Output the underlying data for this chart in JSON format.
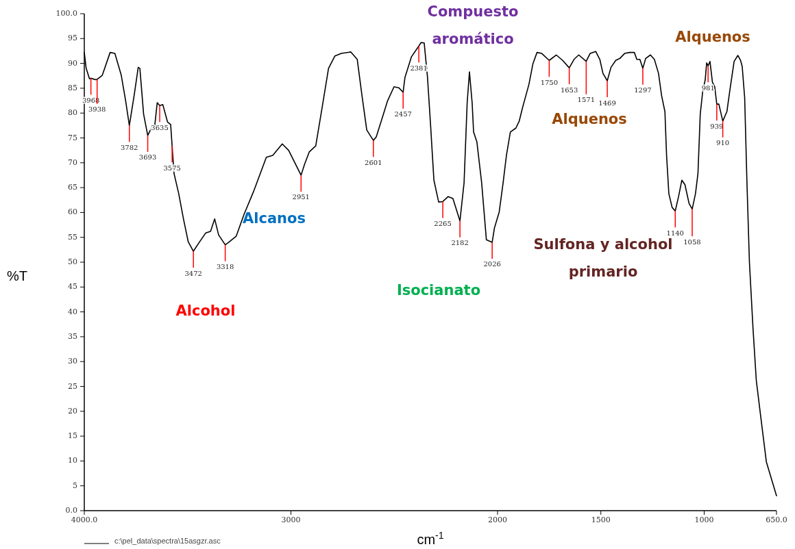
{
  "chart_data": {
    "type": "line",
    "xlabel": "cm$^{-1}$",
    "ylabel": "%T",
    "xlim": [
      4000,
      650
    ],
    "xticks": [
      {
        "value": 4000,
        "label": "4000.0"
      },
      3000,
      2000,
      1500,
      1000,
      {
        "value": 650,
        "label": "650.0"
      }
    ],
    "ylim": [
      0,
      100
    ],
    "yticks": [
      {
        "value": 0,
        "label": "0.0"
      },
      5,
      10,
      15,
      20,
      25,
      30,
      35,
      40,
      45,
      50,
      55,
      60,
      65,
      70,
      75,
      80,
      85,
      90,
      95,
      {
        "value": 100,
        "label": "100.0"
      }
    ],
    "grid": false,
    "legend": "bottom left",
    "marker": "none",
    "line_style": "solid",
    "x": [
      4000,
      3991,
      3975,
      3968,
      3944,
      3938,
      3913,
      3875,
      3852,
      3821,
      3800,
      3782,
      3759,
      3739,
      3731,
      3713,
      3693,
      3675,
      3659,
      3647,
      3635,
      3620,
      3597,
      3582,
      3575,
      3566,
      3543,
      3520,
      3497,
      3472,
      3450,
      3412,
      3389,
      3369,
      3350,
      3318,
      3304,
      3265,
      3227,
      3181,
      3119,
      3088,
      3042,
      3011,
      2951,
      2934,
      2911,
      2880,
      2849,
      2818,
      2787,
      2756,
      2710,
      2679,
      2656,
      2633,
      2601,
      2587,
      2556,
      2532,
      2501,
      2478,
      2457,
      2448,
      2417,
      2381,
      2370,
      2355,
      2339,
      2324,
      2308,
      2285,
      2265,
      2239,
      2216,
      2182,
      2162,
      2147,
      2136,
      2123,
      2116,
      2100,
      2077,
      2054,
      2026,
      2015,
      1992,
      1973,
      1957,
      1938,
      1911,
      1895,
      1879,
      1848,
      1829,
      1809,
      1786,
      1750,
      1716,
      1685,
      1653,
      1630,
      1607,
      1571,
      1552,
      1525,
      1505,
      1490,
      1469,
      1451,
      1428,
      1408,
      1385,
      1361,
      1338,
      1326,
      1311,
      1297,
      1283,
      1260,
      1241,
      1221,
      1206,
      1190,
      1182,
      1171,
      1155,
      1140,
      1124,
      1108,
      1093,
      1073,
      1058,
      1042,
      1030,
      1019,
      1007,
      995,
      988,
      981,
      972,
      960,
      949,
      939,
      929,
      910,
      890,
      875,
      855,
      837,
      824,
      816,
      804,
      793,
      781,
      764,
      748,
      731,
      699,
      650
    ],
    "series": [
      {
        "name": "c:\\pel_data\\spectra\\15asgzr.asc",
        "color": "#000000",
        "values": [
          92.2,
          89.0,
          86.9,
          87.0,
          86.7,
          86.8,
          87.6,
          92.2,
          92.0,
          87.6,
          82.5,
          77.5,
          83.5,
          89.2,
          89.0,
          79.8,
          75.5,
          77.0,
          77.5,
          82.1,
          81.5,
          81.7,
          78.2,
          77.7,
          73.4,
          67.9,
          63.8,
          58.7,
          54.1,
          52.2,
          53.6,
          55.9,
          56.2,
          58.7,
          55.5,
          53.5,
          53.9,
          55.2,
          59.6,
          64.2,
          71.1,
          71.5,
          73.8,
          72.5,
          67.5,
          69.7,
          72.2,
          73.4,
          81.1,
          89.0,
          91.5,
          92.0,
          92.3,
          90.8,
          83.5,
          76.6,
          74.5,
          75.2,
          79.3,
          82.5,
          85.3,
          85.1,
          84.2,
          87.2,
          91.3,
          93.5,
          94.2,
          94.1,
          87.2,
          77.5,
          66.5,
          62.1,
          62.2,
          63.2,
          62.8,
          58.3,
          66.0,
          82.1,
          88.3,
          82.1,
          76.2,
          74.2,
          66.0,
          54.5,
          54.0,
          56.9,
          60.1,
          66.0,
          71.5,
          76.2,
          77.0,
          78.4,
          81.1,
          85.8,
          89.9,
          92.2,
          92.0,
          90.6,
          91.7,
          90.6,
          89.1,
          90.8,
          91.7,
          90.4,
          92.0,
          92.4,
          90.8,
          88.0,
          86.5,
          89.2,
          90.6,
          91.0,
          92.0,
          92.2,
          92.2,
          90.8,
          90.8,
          89.0,
          91.0,
          91.7,
          90.8,
          88.0,
          83.5,
          80.3,
          71.5,
          63.8,
          61.0,
          60.3,
          63.2,
          66.5,
          65.6,
          61.8,
          60.7,
          63.8,
          67.9,
          79.8,
          84.4,
          86.7,
          90.1,
          89.5,
          90.4,
          86.2,
          85.3,
          81.8,
          81.8,
          78.4,
          80.3,
          84.8,
          90.4,
          91.6,
          90.6,
          89.4,
          83.1,
          66.0,
          50.0,
          36.9,
          26.3,
          20.5,
          9.8,
          3.0
        ]
      }
    ],
    "annotations": [
      {
        "text": "3968",
        "x": 3968,
        "y": 87.0
      },
      {
        "text": "3938",
        "x": 3938,
        "y": 86.8
      },
      {
        "text": "3782",
        "x": 3782,
        "y": 77.5
      },
      {
        "text": "3693",
        "x": 3693,
        "y": 75.5
      },
      {
        "text": "3635",
        "x": 3635,
        "y": 81.5
      },
      {
        "text": "3575",
        "x": 3575,
        "y": 73.4
      },
      {
        "text": "3472",
        "x": 3472,
        "y": 52.2
      },
      {
        "text": "3318",
        "x": 3318,
        "y": 53.5
      },
      {
        "text": "2951",
        "x": 2951,
        "y": 67.5
      },
      {
        "text": "2601",
        "x": 2601,
        "y": 74.5
      },
      {
        "text": "2457",
        "x": 2457,
        "y": 84.2
      },
      {
        "text": "2381",
        "x": 2381,
        "y": 93.5
      },
      {
        "text": "2265",
        "x": 2265,
        "y": 62.2
      },
      {
        "text": "2182",
        "x": 2182,
        "y": 58.3
      },
      {
        "text": "2026",
        "x": 2026,
        "y": 54.0
      },
      {
        "text": "1750",
        "x": 1750,
        "y": 90.6
      },
      {
        "text": "1653",
        "x": 1653,
        "y": 89.1
      },
      {
        "text": "1571",
        "x": 1571,
        "y": 90.4
      },
      {
        "text": "1469",
        "x": 1469,
        "y": 86.5
      },
      {
        "text": "1297",
        "x": 1297,
        "y": 89.0
      },
      {
        "text": "1140",
        "x": 1140,
        "y": 60.3
      },
      {
        "text": "1058",
        "x": 1058,
        "y": 60.7
      },
      {
        "text": "981",
        "x": 981,
        "y": 89.5
      },
      {
        "text": "939",
        "x": 939,
        "y": 81.8
      },
      {
        "text": "910",
        "x": 910,
        "y": 78.4
      },
      "Compuesto aromático",
      "Alcanos",
      "Alcohol",
      "Isocianato",
      "Alquenos",
      "Sulfona y alcohol primario",
      "Alquenos"
    ]
  }
}
